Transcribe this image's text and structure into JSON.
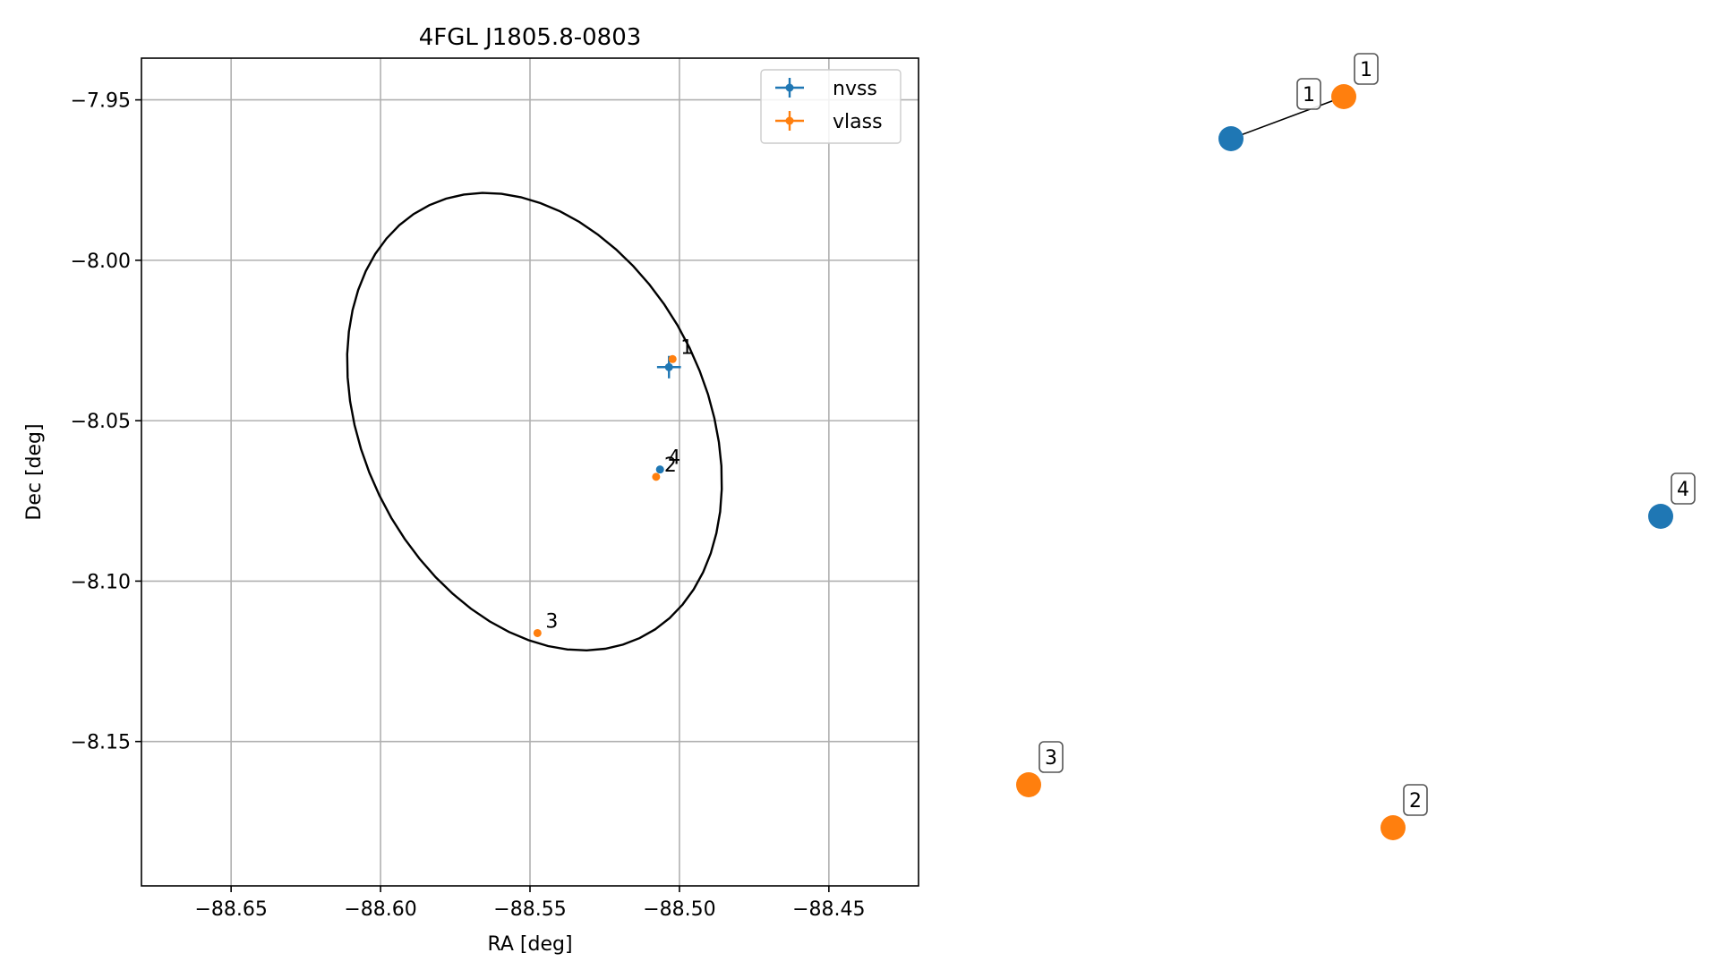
{
  "chart_data": [
    {
      "type": "scatter",
      "title": "4FGL J1805.8-0803",
      "xlabel": "RA [deg]",
      "ylabel": "Dec [deg]",
      "xlim": [
        -88.68,
        -88.42
      ],
      "ylim": [
        -8.195,
        -7.937
      ],
      "xticks": [
        -88.65,
        -88.6,
        -88.55,
        -88.5,
        -88.45
      ],
      "xtick_labels": [
        "−88.65",
        "−88.60",
        "−88.55",
        "−88.50",
        "−88.45"
      ],
      "yticks": [
        -7.95,
        -8.0,
        -8.05,
        -8.1,
        -8.15
      ],
      "ytick_labels": [
        "−7.95",
        "−8.00",
        "−8.05",
        "−8.10",
        "−8.15"
      ],
      "grid": true,
      "legend_position": "top-right",
      "ellipse": {
        "center": [
          -88.5485,
          -8.0503
        ],
        "semi_major": 0.0763,
        "semi_minor": 0.0565,
        "angle_deg": 302
      },
      "series": [
        {
          "name": "nvss",
          "color": "#1f77b4",
          "points": [
            {
              "label": "",
              "ra": -88.5035,
              "dec": -8.0333,
              "ra_err": 0.004,
              "dec_err": 0.0035
            },
            {
              "label": "4",
              "ra": -88.5065,
              "dec": -8.0652,
              "ra_err": 0,
              "dec_err": 0
            }
          ]
        },
        {
          "name": "vlass",
          "color": "#ff7f0e",
          "points": [
            {
              "label": "1",
              "ra": -88.5023,
              "dec": -8.0308,
              "ra_err": 0,
              "dec_err": 0
            },
            {
              "label": "2",
              "ra": -88.5078,
              "dec": -8.0675,
              "ra_err": 0,
              "dec_err": 0
            },
            {
              "label": "3",
              "ra": -88.5475,
              "dec": -8.1162,
              "ra_err": 0,
              "dec_err": 0
            }
          ]
        }
      ]
    },
    {
      "type": "scatter",
      "title": "",
      "axes_visible": false,
      "nodes": [
        {
          "label": "1",
          "series": "nvss",
          "color": "#1f77b4",
          "has_label": false
        },
        {
          "label": "1",
          "series": "vlass",
          "color": "#ff7f0e",
          "has_label": true
        },
        {
          "label": "4",
          "series": "nvss",
          "color": "#1f77b4",
          "has_label": true
        },
        {
          "label": "3",
          "series": "vlass",
          "color": "#ff7f0e",
          "has_label": true
        },
        {
          "label": "2",
          "series": "vlass",
          "color": "#ff7f0e",
          "has_label": true
        }
      ],
      "edges": [
        [
          0,
          1
        ]
      ]
    }
  ]
}
